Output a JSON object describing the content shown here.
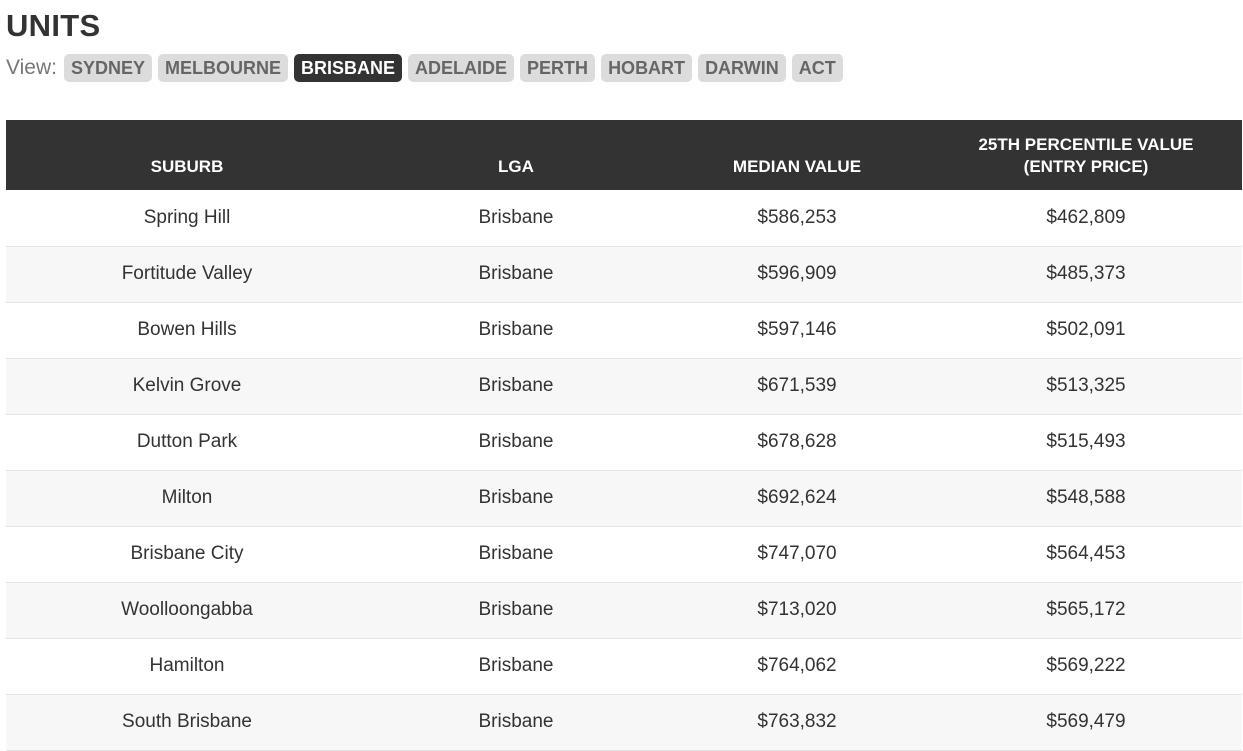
{
  "page": {
    "title": "UNITS"
  },
  "view": {
    "label": "View:",
    "tabs": [
      {
        "label": "SYDNEY",
        "active": false
      },
      {
        "label": "MELBOURNE",
        "active": false
      },
      {
        "label": "BRISBANE",
        "active": true
      },
      {
        "label": "ADELAIDE",
        "active": false
      },
      {
        "label": "PERTH",
        "active": false
      },
      {
        "label": "HOBART",
        "active": false
      },
      {
        "label": "DARWIN",
        "active": false
      },
      {
        "label": "ACT",
        "active": false
      }
    ]
  },
  "table": {
    "headers": {
      "suburb": "SUBURB",
      "lga": "LGA",
      "median": "MEDIAN VALUE",
      "percentile_line1": "25TH PERCENTILE VALUE",
      "percentile_line2": "(ENTRY PRICE)"
    },
    "rows": [
      {
        "suburb": "Spring Hill",
        "lga": "Brisbane",
        "median": "$586,253",
        "percentile": "$462,809"
      },
      {
        "suburb": "Fortitude Valley",
        "lga": "Brisbane",
        "median": "$596,909",
        "percentile": "$485,373"
      },
      {
        "suburb": "Bowen Hills",
        "lga": "Brisbane",
        "median": "$597,146",
        "percentile": "$502,091"
      },
      {
        "suburb": "Kelvin Grove",
        "lga": "Brisbane",
        "median": "$671,539",
        "percentile": "$513,325"
      },
      {
        "suburb": "Dutton Park",
        "lga": "Brisbane",
        "median": "$678,628",
        "percentile": "$515,493"
      },
      {
        "suburb": "Milton",
        "lga": "Brisbane",
        "median": "$692,624",
        "percentile": "$548,588"
      },
      {
        "suburb": "Brisbane City",
        "lga": "Brisbane",
        "median": "$747,070",
        "percentile": "$564,453"
      },
      {
        "suburb": "Woolloongabba",
        "lga": "Brisbane",
        "median": "$713,020",
        "percentile": "$565,172"
      },
      {
        "suburb": "Hamilton",
        "lga": "Brisbane",
        "median": "$764,062",
        "percentile": "$569,222"
      },
      {
        "suburb": "South Brisbane",
        "lga": "Brisbane",
        "median": "$763,832",
        "percentile": "$569,479"
      }
    ]
  }
}
